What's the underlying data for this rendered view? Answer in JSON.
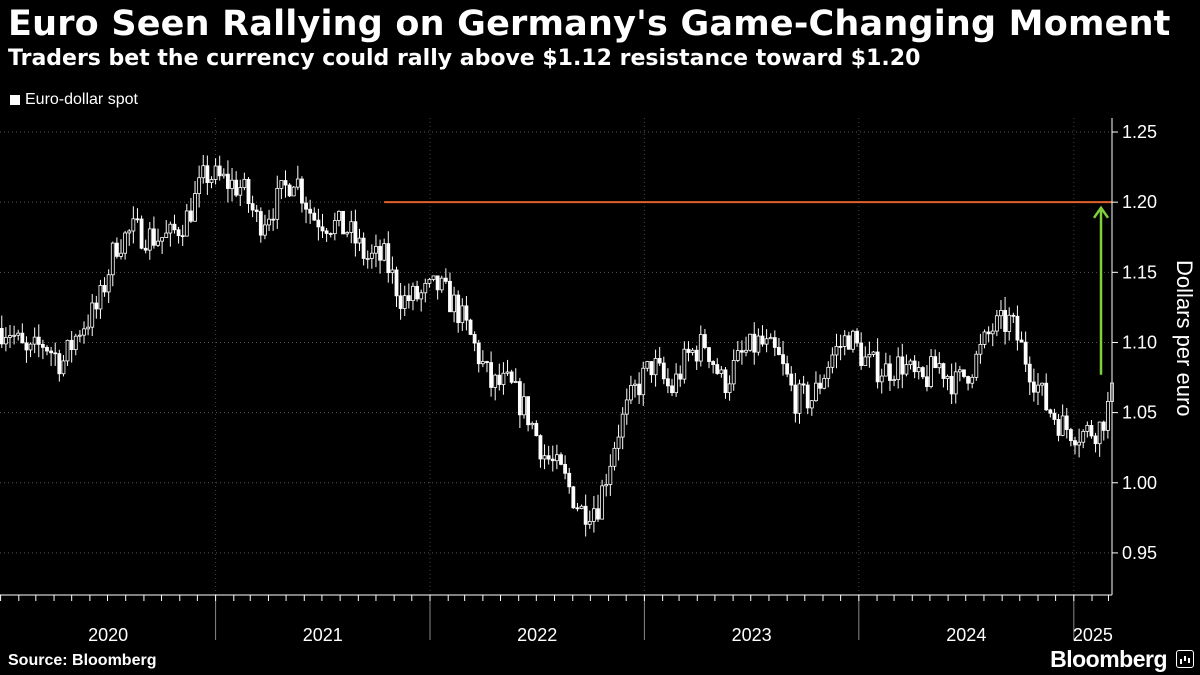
{
  "header": {
    "title": "Euro Seen Rallying on Germany's Game-Changing Moment",
    "subtitle": "Traders bet the currency could rally above $1.12 resistance toward $1.20"
  },
  "legend": {
    "label": "Euro-dollar spot"
  },
  "footer": {
    "source": "Source: Bloomberg",
    "brand": "Bloomberg"
  },
  "colors": {
    "background": "#000000",
    "series": "#ffffff",
    "resistance_line": "#e0622b",
    "arrow": "#7fd13b",
    "grid": "#555555"
  },
  "chart_data": {
    "type": "candlestick",
    "title": "Euro Seen Rallying on Germany's Game-Changing Moment",
    "ylabel": "Dollars per euro",
    "ylim": [
      0.92,
      1.26
    ],
    "yticks": [
      0.95,
      1.0,
      1.05,
      1.1,
      1.15,
      1.2,
      1.25
    ],
    "ytick_labels": [
      "0.95",
      "1.00",
      "1.05",
      "1.10",
      "1.15",
      "1.20",
      "1.25"
    ],
    "xlim": [
      "2019-12-31",
      "2025-03-07"
    ],
    "x_labels": [
      "2020",
      "2021",
      "2022",
      "2023",
      "2024",
      "2025"
    ],
    "grid": true,
    "legend_position": "top-left",
    "series": [
      {
        "name": "Euro-dollar spot",
        "x": [
          "2020-01",
          "2020-02",
          "2020-03",
          "2020-04",
          "2020-05",
          "2020-06",
          "2020-07",
          "2020-08",
          "2020-09",
          "2020-10",
          "2020-11",
          "2020-12",
          "2021-01",
          "2021-02",
          "2021-03",
          "2021-04",
          "2021-05",
          "2021-06",
          "2021-07",
          "2021-08",
          "2021-09",
          "2021-10",
          "2021-11",
          "2021-12",
          "2022-01",
          "2022-02",
          "2022-03",
          "2022-04",
          "2022-05",
          "2022-06",
          "2022-07",
          "2022-08",
          "2022-09",
          "2022-10",
          "2022-11",
          "2022-12",
          "2023-01",
          "2023-02",
          "2023-03",
          "2023-04",
          "2023-05",
          "2023-06",
          "2023-07",
          "2023-08",
          "2023-09",
          "2023-10",
          "2023-11",
          "2023-12",
          "2024-01",
          "2024-02",
          "2024-03",
          "2024-04",
          "2024-05",
          "2024-06",
          "2024-07",
          "2024-08",
          "2024-09",
          "2024-10",
          "2024-11",
          "2024-12",
          "2025-01",
          "2025-02",
          "2025-03"
        ],
        "values": [
          1.11,
          1.09,
          1.1,
          1.085,
          1.11,
          1.125,
          1.17,
          1.18,
          1.175,
          1.175,
          1.19,
          1.22,
          1.215,
          1.21,
          1.185,
          1.2,
          1.22,
          1.19,
          1.185,
          1.18,
          1.16,
          1.16,
          1.13,
          1.133,
          1.14,
          1.125,
          1.1,
          1.07,
          1.07,
          1.05,
          1.02,
          1.005,
          0.98,
          0.985,
          1.035,
          1.065,
          1.085,
          1.065,
          1.09,
          1.1,
          1.07,
          1.09,
          1.1,
          1.09,
          1.06,
          1.06,
          1.09,
          1.105,
          1.085,
          1.08,
          1.085,
          1.07,
          1.085,
          1.07,
          1.085,
          1.11,
          1.115,
          1.085,
          1.055,
          1.04,
          1.035,
          1.04,
          1.07
        ]
      }
    ],
    "annotations": [
      {
        "type": "hline",
        "y": 1.2,
        "from": "2021-10",
        "color": "#e0622b"
      },
      {
        "type": "arrow",
        "from_y": 1.077,
        "to_y": 1.196,
        "at": "2025-03",
        "color": "#7fd13b"
      }
    ]
  }
}
